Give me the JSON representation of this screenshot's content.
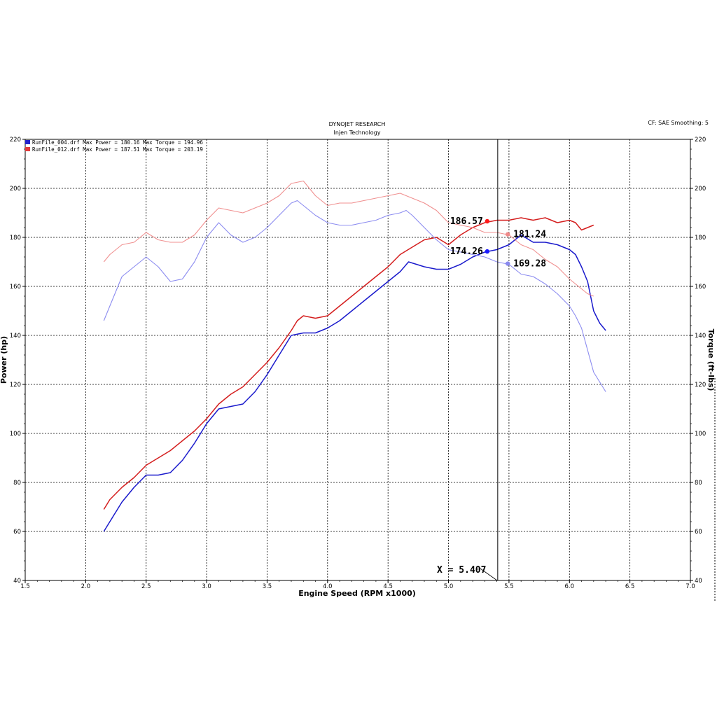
{
  "header": {
    "company": "DYNOJET RESEARCH",
    "subtitle": "Injen Technology",
    "correction": "CF: SAE  Smoothing: 5"
  },
  "legend": [
    {
      "color": "#2222cc",
      "text": "RunFile_004.drf Max Power = 180.16    Max Torque = 194.96"
    },
    {
      "color": "#e23b3b",
      "text": "RunFile_012.drf Max Power = 187.51    Max Torque = 203.19"
    }
  ],
  "cursor_readout": "X = 5.407",
  "markers": [
    {
      "label": "186.57",
      "x": 5.32,
      "y": 186.57,
      "color": "#ff1a1a",
      "side": "left"
    },
    {
      "label": "181.24",
      "x": 5.49,
      "y": 181.24,
      "color": "#f08a8a",
      "side": "right"
    },
    {
      "label": "174.26",
      "x": 5.32,
      "y": 174.26,
      "color": "#1a1aff",
      "side": "left"
    },
    {
      "label": "169.28",
      "x": 5.49,
      "y": 169.28,
      "color": "#8a8aee",
      "side": "right"
    }
  ],
  "chart_data": {
    "type": "line",
    "xlabel": "Engine Speed (RPM x1000)",
    "ylabel": "Power (hp)",
    "y2label": "Torque (ft-lbs)",
    "xlim": [
      1.5,
      7.0
    ],
    "ylim": [
      40,
      220
    ],
    "y2lim": [
      40,
      220
    ],
    "x_ticks": [
      "1.5",
      "2.0",
      "2.5",
      "3.0",
      "3.5",
      "4.0",
      "4.5",
      "5.0",
      "5.5",
      "6.0",
      "6.5",
      "7.0"
    ],
    "y_ticks": [
      "40",
      "60",
      "80",
      "100",
      "120",
      "140",
      "160",
      "180",
      "200",
      "220"
    ],
    "grid": true,
    "cursor_x": 5.407,
    "series": [
      {
        "name": "RunFile_004.drf",
        "quantity": "Power",
        "color": "#1a1acc",
        "width": 1.5,
        "points": [
          [
            2.15,
            60
          ],
          [
            2.2,
            64
          ],
          [
            2.3,
            72
          ],
          [
            2.4,
            78
          ],
          [
            2.5,
            83
          ],
          [
            2.6,
            83
          ],
          [
            2.7,
            84
          ],
          [
            2.8,
            89
          ],
          [
            2.9,
            96
          ],
          [
            3.0,
            104
          ],
          [
            3.1,
            110
          ],
          [
            3.2,
            111
          ],
          [
            3.3,
            112
          ],
          [
            3.4,
            117
          ],
          [
            3.5,
            124
          ],
          [
            3.6,
            132
          ],
          [
            3.7,
            140
          ],
          [
            3.8,
            141
          ],
          [
            3.9,
            141
          ],
          [
            4.0,
            143
          ],
          [
            4.1,
            146
          ],
          [
            4.2,
            150
          ],
          [
            4.3,
            154
          ],
          [
            4.4,
            158
          ],
          [
            4.5,
            162
          ],
          [
            4.6,
            166
          ],
          [
            4.67,
            170
          ],
          [
            4.8,
            168
          ],
          [
            4.9,
            167
          ],
          [
            5.0,
            167
          ],
          [
            5.1,
            169
          ],
          [
            5.2,
            172
          ],
          [
            5.3,
            174
          ],
          [
            5.4,
            175
          ],
          [
            5.5,
            177
          ],
          [
            5.6,
            181
          ],
          [
            5.7,
            178
          ],
          [
            5.8,
            178
          ],
          [
            5.9,
            177
          ],
          [
            6.0,
            175
          ],
          [
            6.05,
            173
          ],
          [
            6.1,
            168
          ],
          [
            6.15,
            162
          ],
          [
            6.2,
            150
          ],
          [
            6.25,
            145
          ],
          [
            6.3,
            142
          ]
        ]
      },
      {
        "name": "RunFile_012.drf",
        "quantity": "Power",
        "color": "#d41e1e",
        "width": 1.5,
        "points": [
          [
            2.15,
            69
          ],
          [
            2.2,
            73
          ],
          [
            2.3,
            78
          ],
          [
            2.4,
            82
          ],
          [
            2.5,
            87
          ],
          [
            2.6,
            90
          ],
          [
            2.7,
            93
          ],
          [
            2.8,
            97
          ],
          [
            2.9,
            101
          ],
          [
            3.0,
            106
          ],
          [
            3.1,
            112
          ],
          [
            3.2,
            116
          ],
          [
            3.3,
            119
          ],
          [
            3.4,
            124
          ],
          [
            3.5,
            129
          ],
          [
            3.6,
            135
          ],
          [
            3.7,
            142
          ],
          [
            3.75,
            146
          ],
          [
            3.8,
            148
          ],
          [
            3.9,
            147
          ],
          [
            4.0,
            148
          ],
          [
            4.1,
            152
          ],
          [
            4.2,
            156
          ],
          [
            4.3,
            160
          ],
          [
            4.4,
            164
          ],
          [
            4.5,
            168
          ],
          [
            4.6,
            173
          ],
          [
            4.7,
            176
          ],
          [
            4.8,
            179
          ],
          [
            4.9,
            180
          ],
          [
            5.0,
            177
          ],
          [
            5.1,
            181
          ],
          [
            5.2,
            184
          ],
          [
            5.3,
            186
          ],
          [
            5.4,
            187
          ],
          [
            5.5,
            187
          ],
          [
            5.6,
            188
          ],
          [
            5.7,
            187
          ],
          [
            5.8,
            188
          ],
          [
            5.9,
            186
          ],
          [
            6.0,
            187
          ],
          [
            6.05,
            186
          ],
          [
            6.1,
            183
          ],
          [
            6.15,
            184
          ],
          [
            6.2,
            185
          ]
        ]
      },
      {
        "name": "RunFile_004.drf",
        "quantity": "Torque",
        "color": "#8c8cf0",
        "width": 1.1,
        "points": [
          [
            2.15,
            146
          ],
          [
            2.2,
            152
          ],
          [
            2.3,
            164
          ],
          [
            2.4,
            168
          ],
          [
            2.5,
            172
          ],
          [
            2.6,
            168
          ],
          [
            2.7,
            162
          ],
          [
            2.8,
            163
          ],
          [
            2.9,
            170
          ],
          [
            3.0,
            180
          ],
          [
            3.1,
            186
          ],
          [
            3.2,
            181
          ],
          [
            3.3,
            178
          ],
          [
            3.4,
            180
          ],
          [
            3.5,
            184
          ],
          [
            3.6,
            189
          ],
          [
            3.7,
            194
          ],
          [
            3.75,
            195
          ],
          [
            3.8,
            193
          ],
          [
            3.9,
            189
          ],
          [
            4.0,
            186
          ],
          [
            4.1,
            185
          ],
          [
            4.2,
            185
          ],
          [
            4.3,
            186
          ],
          [
            4.4,
            187
          ],
          [
            4.5,
            189
          ],
          [
            4.6,
            190
          ],
          [
            4.65,
            191
          ],
          [
            4.7,
            189
          ],
          [
            4.8,
            184
          ],
          [
            4.9,
            179
          ],
          [
            5.0,
            175
          ],
          [
            5.1,
            174
          ],
          [
            5.2,
            173
          ],
          [
            5.3,
            172
          ],
          [
            5.4,
            170
          ],
          [
            5.5,
            169
          ],
          [
            5.6,
            165
          ],
          [
            5.7,
            164
          ],
          [
            5.8,
            161
          ],
          [
            5.9,
            157
          ],
          [
            6.0,
            152
          ],
          [
            6.05,
            148
          ],
          [
            6.1,
            143
          ],
          [
            6.15,
            134
          ],
          [
            6.2,
            125
          ],
          [
            6.3,
            117
          ]
        ]
      },
      {
        "name": "RunFile_012.drf",
        "quantity": "Torque",
        "color": "#f09090",
        "width": 1.1,
        "points": [
          [
            2.15,
            170
          ],
          [
            2.2,
            173
          ],
          [
            2.3,
            177
          ],
          [
            2.4,
            178
          ],
          [
            2.5,
            182
          ],
          [
            2.6,
            179
          ],
          [
            2.7,
            178
          ],
          [
            2.8,
            178
          ],
          [
            2.9,
            181
          ],
          [
            3.0,
            187
          ],
          [
            3.1,
            192
          ],
          [
            3.2,
            191
          ],
          [
            3.3,
            190
          ],
          [
            3.4,
            192
          ],
          [
            3.5,
            194
          ],
          [
            3.6,
            197
          ],
          [
            3.7,
            202
          ],
          [
            3.8,
            203
          ],
          [
            3.9,
            197
          ],
          [
            4.0,
            193
          ],
          [
            4.1,
            194
          ],
          [
            4.2,
            194
          ],
          [
            4.3,
            195
          ],
          [
            4.4,
            196
          ],
          [
            4.5,
            197
          ],
          [
            4.6,
            198
          ],
          [
            4.7,
            196
          ],
          [
            4.8,
            194
          ],
          [
            4.9,
            191
          ],
          [
            5.0,
            186
          ],
          [
            5.1,
            185
          ],
          [
            5.2,
            184
          ],
          [
            5.3,
            182
          ],
          [
            5.4,
            182
          ],
          [
            5.5,
            181
          ],
          [
            5.6,
            177
          ],
          [
            5.7,
            175
          ],
          [
            5.8,
            171
          ],
          [
            5.9,
            168
          ],
          [
            6.0,
            163
          ],
          [
            6.05,
            161
          ],
          [
            6.1,
            159
          ],
          [
            6.15,
            157
          ],
          [
            6.2,
            156
          ]
        ]
      }
    ]
  }
}
